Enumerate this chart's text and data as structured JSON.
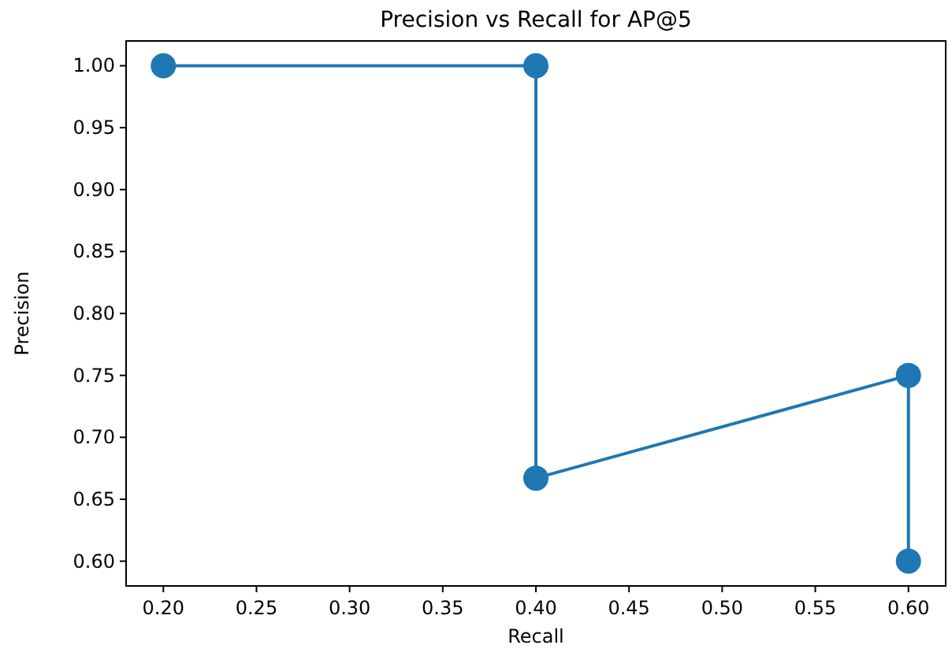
{
  "chart_data": {
    "type": "line",
    "title": "Precision vs Recall for AP@5",
    "xlabel": "Recall",
    "ylabel": "Precision",
    "x": [
      0.2,
      0.4,
      0.4,
      0.6,
      0.6
    ],
    "series": [
      {
        "color": "#1f77b4",
        "values": [
          1.0,
          1.0,
          0.667,
          0.75,
          0.6
        ]
      }
    ],
    "xlim": [
      0.18,
      0.62
    ],
    "xticks": [
      {
        "value": 0.2,
        "label": "0.20"
      },
      {
        "value": 0.25,
        "label": "0.25"
      },
      {
        "value": 0.3,
        "label": "0.30"
      },
      {
        "value": 0.35,
        "label": "0.35"
      },
      {
        "value": 0.4,
        "label": "0.40"
      },
      {
        "value": 0.45,
        "label": "0.45"
      },
      {
        "value": 0.5,
        "label": "0.50"
      },
      {
        "value": 0.55,
        "label": "0.55"
      },
      {
        "value": 0.6,
        "label": "0.60"
      }
    ],
    "ylim": [
      0.58,
      1.02
    ],
    "yticks": [
      {
        "value": 0.6,
        "label": "0.60"
      },
      {
        "value": 0.65,
        "label": "0.65"
      },
      {
        "value": 0.7,
        "label": "0.70"
      },
      {
        "value": 0.75,
        "label": "0.75"
      },
      {
        "value": 0.8,
        "label": "0.80"
      },
      {
        "value": 0.85,
        "label": "0.85"
      },
      {
        "value": 0.9,
        "label": "0.90"
      },
      {
        "value": 0.95,
        "label": "0.95"
      },
      {
        "value": 1.0,
        "label": "1.00"
      }
    ],
    "marker": "circle",
    "line_style": "solid"
  }
}
